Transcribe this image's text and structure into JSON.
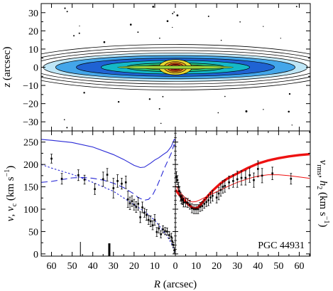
{
  "chart_data": [
    {
      "type": "heatmap",
      "panel": "top",
      "ylabel_var": "z",
      "ylabel_unit": " (arcsec)",
      "ylim": [
        -35,
        35
      ],
      "xlim": [
        65,
        -65
      ],
      "yticks": [
        30,
        20,
        10,
        0,
        -10,
        -20,
        -30
      ],
      "ytick_labels": [
        "30",
        "20",
        "10",
        "0",
        "−10",
        "−20",
        "−30"
      ],
      "description_free": true,
      "isophotes": [
        {
          "a": 80,
          "b": 12.5,
          "fill": "none"
        },
        {
          "a": 75,
          "b": 10.8,
          "fill": "none"
        },
        {
          "a": 70,
          "b": 9.2,
          "fill": "none"
        },
        {
          "a": 64,
          "b": 7.8,
          "fill": "#bfe6f6"
        },
        {
          "a": 58,
          "b": 6.4,
          "fill": "#43a6ea"
        },
        {
          "a": 48,
          "b": 5.0,
          "fill": "#1f63d3"
        },
        {
          "a": 36,
          "b": 3.7,
          "fill": "#14b8c8"
        },
        {
          "a": 24,
          "b": 2.4,
          "fill": "#27c27b"
        },
        {
          "a": 16,
          "b": 1.5,
          "fill": "#9bd13d"
        },
        {
          "a": 8,
          "b": 4.2,
          "fill": "#e8d830"
        },
        {
          "a": 5.5,
          "b": 3.1,
          "fill": "#f39a1e"
        },
        {
          "a": 4,
          "b": 2.3,
          "fill": "#ec5418"
        },
        {
          "a": 2.8,
          "b": 1.6,
          "fill": "#cf1414"
        },
        {
          "a": 1.8,
          "b": 1.0,
          "fill": "#8a0000"
        }
      ]
    },
    {
      "type": "line",
      "panel": "bottom",
      "xlabel_var": "R",
      "xlabel_unit": " (arcsec)",
      "xticks": [
        60,
        50,
        40,
        30,
        20,
        10,
        0,
        10,
        20,
        30,
        40,
        50,
        60
      ],
      "xtick_labels": [
        "60",
        "50",
        "40",
        "30",
        "20",
        "10",
        "0",
        "10",
        "20",
        "30",
        "40",
        "50",
        "60"
      ],
      "ylim": [
        -5,
        275
      ],
      "yticks": [
        0,
        50,
        100,
        150,
        200,
        250
      ],
      "ylabel_left_parts": [
        "v",
        ", ",
        "v",
        "c",
        " (km s",
        "−1",
        ")"
      ],
      "ylabel_right_parts": [
        "v",
        "rms",
        ", ",
        "h",
        "2",
        " (km s",
        "−1",
        ")"
      ],
      "annotation": "PGC 44931",
      "left_side": {
        "v_points": [
          {
            "r": 60,
            "v": 213,
            "e": 10
          },
          {
            "r": 55,
            "v": 168,
            "e": 12
          },
          {
            "r": 47,
            "v": 176,
            "e": 12
          },
          {
            "r": 44,
            "v": 166,
            "e": 10
          },
          {
            "r": 39,
            "v": 145,
            "e": 12
          },
          {
            "r": 35,
            "v": 167,
            "e": 16
          },
          {
            "r": 33,
            "v": 177,
            "e": 14
          },
          {
            "r": 30,
            "v": 147,
            "e": 22
          },
          {
            "r": 28,
            "v": 163,
            "e": 14
          },
          {
            "r": 26,
            "v": 157,
            "e": 12
          },
          {
            "r": 24,
            "v": 160,
            "e": 14
          },
          {
            "r": 23,
            "v": 122,
            "e": 18
          },
          {
            "r": 22,
            "v": 113,
            "e": 14
          },
          {
            "r": 21,
            "v": 118,
            "e": 12
          },
          {
            "r": 20,
            "v": 110,
            "e": 12
          },
          {
            "r": 19,
            "v": 105,
            "e": 12
          },
          {
            "r": 18,
            "v": 112,
            "e": 14
          },
          {
            "r": 17,
            "v": 82,
            "e": 12
          },
          {
            "r": 16,
            "v": 104,
            "e": 12
          },
          {
            "r": 15,
            "v": 92,
            "e": 10
          },
          {
            "r": 14,
            "v": 87,
            "e": 12
          },
          {
            "r": 13,
            "v": 76,
            "e": 10
          },
          {
            "r": 12,
            "v": 73,
            "e": 12
          },
          {
            "r": 11,
            "v": 64,
            "e": 10
          },
          {
            "r": 10,
            "v": 76,
            "e": 12
          },
          {
            "r": 9,
            "v": 49,
            "e": 10
          },
          {
            "r": 8,
            "v": 57,
            "e": 10
          },
          {
            "r": 7,
            "v": 44,
            "e": 8
          },
          {
            "r": 6,
            "v": 55,
            "e": 8
          },
          {
            "r": 5,
            "v": 51,
            "e": 8
          },
          {
            "r": 4,
            "v": 50,
            "e": 8
          },
          {
            "r": 3,
            "v": 42,
            "e": 8
          },
          {
            "r": 2,
            "v": 38,
            "e": 8
          },
          {
            "r": 1.5,
            "v": 28,
            "e": 8
          },
          {
            "r": 1.0,
            "v": 20,
            "e": 6
          },
          {
            "r": 0.5,
            "v": 8,
            "e": 6
          }
        ],
        "vc_solid": [
          [
            65,
            256
          ],
          [
            60,
            254
          ],
          [
            50,
            249
          ],
          [
            40,
            239
          ],
          [
            30,
            222
          ],
          [
            25,
            211
          ],
          [
            20,
            198
          ],
          [
            17,
            193
          ],
          [
            15,
            194
          ],
          [
            12,
            203
          ],
          [
            10,
            210
          ],
          [
            8,
            215
          ],
          [
            6,
            222
          ],
          [
            4,
            228
          ],
          [
            3,
            234
          ],
          [
            2,
            240
          ],
          [
            1.2,
            249
          ],
          [
            0.6,
            256
          ],
          [
            0.2,
            255
          ],
          [
            0,
            250
          ]
        ],
        "vc_long_dash": [
          [
            65,
            160
          ],
          [
            60,
            162
          ],
          [
            55,
            166
          ],
          [
            50,
            170
          ],
          [
            45,
            171
          ],
          [
            40,
            169
          ],
          [
            35,
            165
          ],
          [
            30,
            158
          ],
          [
            25,
            148
          ],
          [
            20,
            134
          ],
          [
            18,
            126
          ],
          [
            15,
            120
          ],
          [
            13,
            122
          ],
          [
            11,
            132
          ],
          [
            9,
            150
          ],
          [
            7,
            172
          ],
          [
            5,
            195
          ],
          [
            3,
            215
          ],
          [
            2,
            225
          ],
          [
            1.2,
            237
          ],
          [
            0.7,
            244
          ],
          [
            0.2,
            242
          ],
          [
            0,
            235
          ]
        ],
        "vc_short_dash": [
          [
            65,
            200
          ],
          [
            60,
            192
          ],
          [
            50,
            178
          ],
          [
            40,
            160
          ],
          [
            30,
            140
          ],
          [
            20,
            110
          ],
          [
            15,
            95
          ],
          [
            10,
            75
          ],
          [
            8,
            64
          ],
          [
            6,
            52
          ],
          [
            4,
            40
          ],
          [
            3,
            32
          ],
          [
            2,
            24
          ],
          [
            1,
            14
          ],
          [
            0.5,
            8
          ],
          [
            0,
            2
          ]
        ],
        "markers": [
          {
            "r": 46,
            "height": 20,
            "width": 1
          },
          {
            "r": 32,
            "height": 18,
            "width": 3
          }
        ]
      },
      "right_side": {
        "vrms_points": [
          {
            "r": 0.5,
            "v": 172,
            "e": 12
          },
          {
            "r": 1,
            "v": 165,
            "e": 10
          },
          {
            "r": 1.5,
            "v": 150,
            "e": 10
          },
          {
            "r": 2,
            "v": 140,
            "e": 10
          },
          {
            "r": 2.5,
            "v": 128,
            "e": 10
          },
          {
            "r": 3,
            "v": 122,
            "e": 10
          },
          {
            "r": 3.5,
            "v": 120,
            "e": 10
          },
          {
            "r": 4,
            "v": 115,
            "e": 10
          },
          {
            "r": 5,
            "v": 115,
            "e": 10
          },
          {
            "r": 6,
            "v": 114,
            "e": 10
          },
          {
            "r": 7,
            "v": 110,
            "e": 10
          },
          {
            "r": 8,
            "v": 102,
            "e": 10
          },
          {
            "r": 9,
            "v": 100,
            "e": 10
          },
          {
            "r": 10,
            "v": 100,
            "e": 10
          },
          {
            "r": 11,
            "v": 100,
            "e": 10
          },
          {
            "r": 12,
            "v": 105,
            "e": 10
          },
          {
            "r": 13,
            "v": 107,
            "e": 10
          },
          {
            "r": 14,
            "v": 112,
            "e": 10
          },
          {
            "r": 15,
            "v": 116,
            "e": 10
          },
          {
            "r": 16,
            "v": 120,
            "e": 12
          },
          {
            "r": 17,
            "v": 126,
            "e": 12
          },
          {
            "r": 18,
            "v": 130,
            "e": 12
          },
          {
            "r": 20,
            "v": 126,
            "e": 12
          },
          {
            "r": 21,
            "v": 135,
            "e": 14
          },
          {
            "r": 22,
            "v": 143,
            "e": 14
          },
          {
            "r": 23,
            "v": 150,
            "e": 14
          },
          {
            "r": 24,
            "v": 152,
            "e": 14
          },
          {
            "r": 26,
            "v": 160,
            "e": 14
          },
          {
            "r": 28,
            "v": 163,
            "e": 14
          },
          {
            "r": 30,
            "v": 167,
            "e": 18
          },
          {
            "r": 32,
            "v": 170,
            "e": 16
          },
          {
            "r": 34,
            "v": 170,
            "e": 16
          },
          {
            "r": 36,
            "v": 176,
            "e": 16
          },
          {
            "r": 38,
            "v": 165,
            "e": 16
          },
          {
            "r": 40,
            "v": 190,
            "e": 18
          },
          {
            "r": 42,
            "v": 175,
            "e": 16
          },
          {
            "r": 47,
            "v": 180,
            "e": 14
          },
          {
            "r": 56,
            "v": 168,
            "e": 12
          }
        ],
        "model_thick": [
          [
            0.2,
            143
          ],
          [
            1,
            138
          ],
          [
            2,
            132
          ],
          [
            3,
            127
          ],
          [
            4,
            122
          ],
          [
            5,
            117
          ],
          [
            6,
            112
          ],
          [
            7,
            108
          ],
          [
            8,
            104
          ],
          [
            9,
            102
          ],
          [
            10,
            102
          ],
          [
            11,
            104
          ],
          [
            12,
            109
          ],
          [
            14,
            120
          ],
          [
            16,
            131
          ],
          [
            18,
            141
          ],
          [
            20,
            150
          ],
          [
            22,
            158
          ],
          [
            25,
            168
          ],
          [
            30,
            180
          ],
          [
            35,
            192
          ],
          [
            40,
            202
          ],
          [
            45,
            209
          ],
          [
            50,
            214
          ],
          [
            55,
            218
          ],
          [
            60,
            221
          ],
          [
            65,
            223
          ]
        ],
        "model_thin": [
          [
            0.2,
            152
          ],
          [
            1,
            147
          ],
          [
            2,
            140
          ],
          [
            3,
            134
          ],
          [
            4,
            129
          ],
          [
            5,
            125
          ],
          [
            6,
            121
          ],
          [
            7,
            118
          ],
          [
            8,
            116
          ],
          [
            10,
            117
          ],
          [
            12,
            121
          ],
          [
            15,
            128
          ],
          [
            20,
            139
          ],
          [
            25,
            150
          ],
          [
            30,
            160
          ],
          [
            35,
            168
          ],
          [
            40,
            174
          ],
          [
            45,
            177
          ],
          [
            50,
            177
          ],
          [
            55,
            175
          ],
          [
            60,
            172
          ],
          [
            65,
            169
          ]
        ]
      }
    }
  ],
  "colors": {
    "model_red": "#ee1111",
    "vc_blue": "#2a2ad6",
    "data_points": "#000000"
  }
}
